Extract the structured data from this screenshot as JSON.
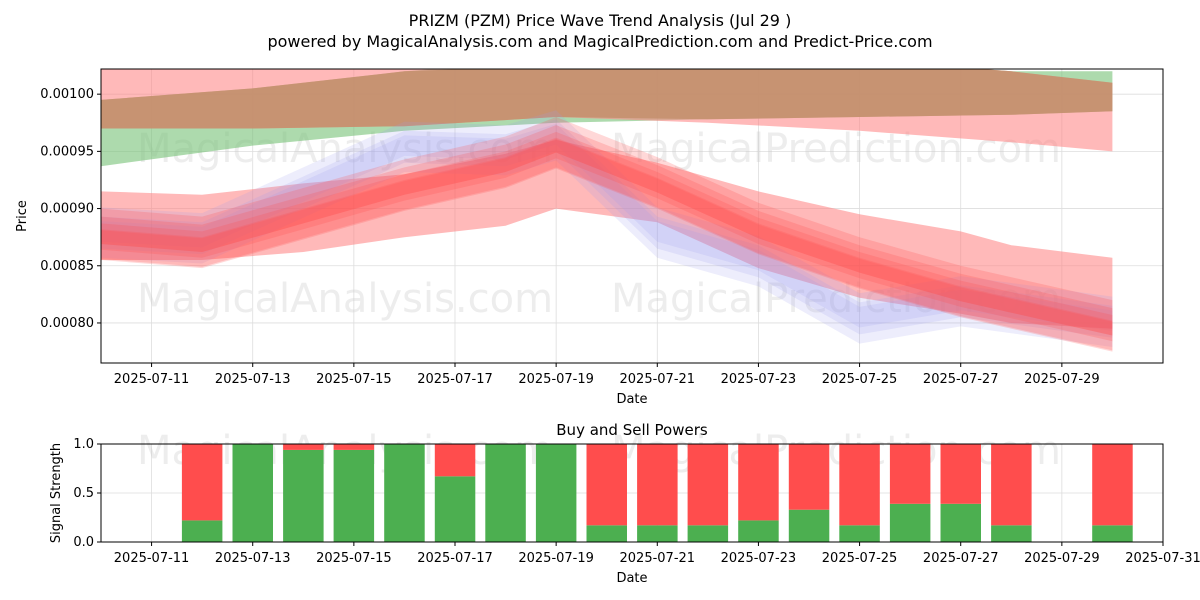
{
  "page": {
    "title_line1": "PRIZM (PZM) Price Wave Trend Analysis (Jul 29 )",
    "title_line2": "powered by MagicalAnalysis.com and MagicalPrediction.com and Predict-Price.com",
    "watermarks": [
      "MagicalAnalysis.com",
      "MagicalPrediction.com"
    ]
  },
  "colors": {
    "buy": "#4caf50",
    "sell": "#ff4d4d",
    "red_band": "#ff7f7f",
    "green_band": "#77c277",
    "brown_band": "#c4906e",
    "blue_band": "#9999ee"
  },
  "chart_data": [
    {
      "type": "area",
      "title": "",
      "xlabel": "Date",
      "ylabel": "Price",
      "xlim": [
        "2025-07-10",
        "2025-07-31"
      ],
      "ylim": [
        0.000765,
        0.001022
      ],
      "grid": true,
      "x_ticks": [
        "2025-07-11",
        "2025-07-13",
        "2025-07-15",
        "2025-07-17",
        "2025-07-19",
        "2025-07-21",
        "2025-07-23",
        "2025-07-25",
        "2025-07-27",
        "2025-07-29"
      ],
      "y_ticks": [
        "0.00080",
        "0.00085",
        "0.00090",
        "0.00095",
        "0.00100"
      ],
      "bands": [
        {
          "color": "green",
          "x": [
            "2025-07-10",
            "2025-07-13",
            "2025-07-16",
            "2025-07-19",
            "2025-07-22",
            "2025-07-25",
            "2025-07-28",
            "2025-07-30"
          ],
          "upper": [
            0.000995,
            0.001005,
            0.00102,
            0.00103,
            0.00103,
            0.00103,
            0.00102,
            0.00102
          ],
          "lower": [
            0.000937,
            0.000955,
            0.000968,
            0.000975,
            0.000978,
            0.00098,
            0.000982,
            0.000985
          ]
        },
        {
          "color": "red",
          "x": [
            "2025-07-10",
            "2025-07-13",
            "2025-07-16",
            "2025-07-19",
            "2025-07-22",
            "2025-07-25",
            "2025-07-28",
            "2025-07-30"
          ],
          "upper": [
            0.001025,
            0.001025,
            0.001025,
            0.001025,
            0.001025,
            0.00103,
            0.00102,
            0.00101
          ],
          "lower": [
            0.00097,
            0.00097,
            0.000972,
            0.00098,
            0.000975,
            0.000968,
            0.000958,
            0.00095
          ]
        },
        {
          "color": "red",
          "x": [
            "2025-07-10",
            "2025-07-12",
            "2025-07-14",
            "2025-07-16",
            "2025-07-18",
            "2025-07-19",
            "2025-07-21",
            "2025-07-23",
            "2025-07-25",
            "2025-07-27",
            "2025-07-28",
            "2025-07-30"
          ],
          "upper": [
            0.000915,
            0.000912,
            0.000922,
            0.00093,
            0.000948,
            0.00096,
            0.00094,
            0.000915,
            0.000895,
            0.00088,
            0.000868,
            0.000857
          ],
          "lower": [
            0.000855,
            0.000855,
            0.000862,
            0.000875,
            0.000885,
            0.0009,
            0.000888,
            0.000848,
            0.000822,
            0.000808,
            0.0008,
            0.000795
          ]
        }
      ],
      "wave_center": {
        "x": [
          "2025-07-10",
          "2025-07-12",
          "2025-07-14",
          "2025-07-16",
          "2025-07-18",
          "2025-07-19",
          "2025-07-21",
          "2025-07-23",
          "2025-07-25",
          "2025-07-27",
          "2025-07-29",
          "2025-07-30"
        ],
        "y": [
          0.000875,
          0.000868,
          0.000893,
          0.000918,
          0.000938,
          0.000955,
          0.00092,
          0.00088,
          0.00085,
          0.000825,
          0.000805,
          0.000795
        ]
      },
      "blue_wave": {
        "x": [
          "2025-07-10",
          "2025-07-12",
          "2025-07-14",
          "2025-07-16",
          "2025-07-18",
          "2025-07-19",
          "2025-07-21",
          "2025-07-23",
          "2025-07-25",
          "2025-07-27",
          "2025-07-29",
          "2025-07-30"
        ],
        "y": [
          0.00088,
          0.000875,
          0.000915,
          0.000955,
          0.000952,
          0.000965,
          0.00088,
          0.000855,
          0.000805,
          0.00082,
          0.000808,
          0.000802
        ]
      }
    },
    {
      "type": "bar",
      "title": "Buy and Sell Powers",
      "xlabel": "Date",
      "ylabel": "Signal Strength",
      "xlim": [
        "2025-07-10",
        "2025-07-31"
      ],
      "ylim": [
        0,
        1
      ],
      "grid": true,
      "x_ticks": [
        "2025-07-11",
        "2025-07-13",
        "2025-07-15",
        "2025-07-17",
        "2025-07-19",
        "2025-07-21",
        "2025-07-23",
        "2025-07-25",
        "2025-07-27",
        "2025-07-29",
        "2025-07-31"
      ],
      "y_ticks": [
        "0.0",
        "0.5",
        "1.0"
      ],
      "dates": [
        "2025-07-12",
        "2025-07-13",
        "2025-07-14",
        "2025-07-15",
        "2025-07-16",
        "2025-07-17",
        "2025-07-18",
        "2025-07-19",
        "2025-07-20",
        "2025-07-21",
        "2025-07-22",
        "2025-07-23",
        "2025-07-24",
        "2025-07-25",
        "2025-07-26",
        "2025-07-27",
        "2025-07-28",
        "2025-07-30"
      ],
      "series": [
        {
          "values": [
            0.22,
            1.0,
            0.94,
            0.94,
            1.0,
            0.67,
            1.0,
            1.0,
            0.17,
            0.17,
            0.17,
            0.22,
            0.33,
            0.17,
            0.39,
            0.39,
            0.17,
            0.17
          ]
        },
        {
          "values": [
            0.78,
            0.0,
            0.06,
            0.06,
            0.0,
            0.33,
            0.0,
            0.0,
            0.83,
            0.83,
            0.83,
            0.78,
            0.67,
            0.83,
            0.61,
            0.61,
            0.83,
            0.83
          ]
        }
      ]
    }
  ]
}
